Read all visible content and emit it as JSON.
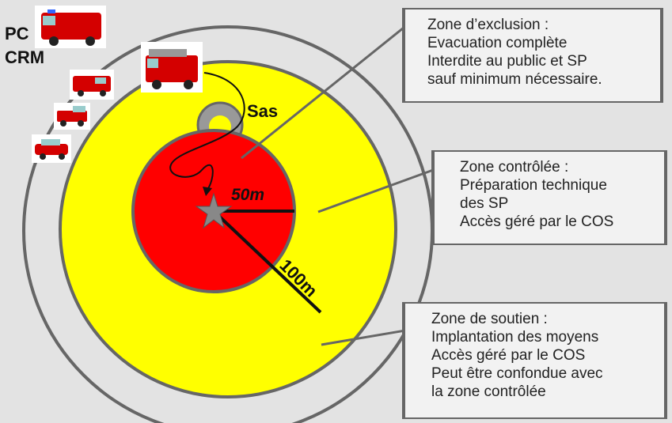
{
  "corner_label": {
    "line1": "PC",
    "line2": "CRM"
  },
  "airlock_label": "Sas",
  "radius_inner_label": "50m",
  "radius_outer_label": "100m",
  "zones": {
    "exclusion": {
      "lines": [
        "Zone d’exclusion :",
        "Evacuation complète",
        "Interdite au public et SP",
        "sauf minimum nécessaire."
      ],
      "color": "#ff0000"
    },
    "controlled": {
      "lines": [
        "Zone contrôlée :",
        "Préparation technique",
        "des SP",
        "Accès géré par le COS"
      ],
      "color": "#ffff00"
    },
    "support": {
      "lines": [
        "Zone de soutien :",
        "Implantation des moyens",
        "Accès géré par le COS",
        "Peut être confondue avec",
        "la zone contrôlée"
      ],
      "color": "#e3e3e3"
    }
  },
  "vehicles": [
    "fire-engine-icon",
    "command-van-icon",
    "ambulance-icon",
    "pickup-truck-icon",
    "car-icon"
  ]
}
